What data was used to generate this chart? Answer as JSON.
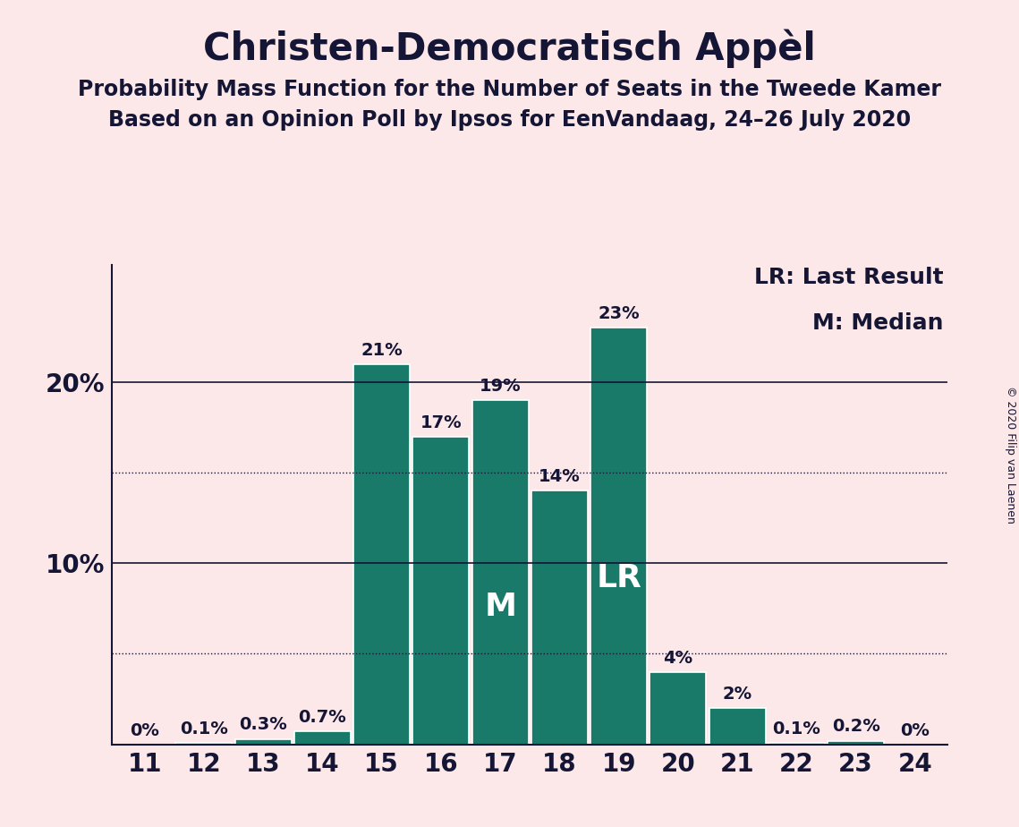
{
  "title": "Christen-Democratisch Appèl",
  "subtitle1": "Probability Mass Function for the Number of Seats in the Tweede Kamer",
  "subtitle2": "Based on an Opinion Poll by Ipsos for EenVandaag, 24–26 July 2020",
  "copyright": "© 2020 Filip van Laenen",
  "legend_lr": "LR: Last Result",
  "legend_m": "M: Median",
  "seats": [
    11,
    12,
    13,
    14,
    15,
    16,
    17,
    18,
    19,
    20,
    21,
    22,
    23,
    24
  ],
  "probabilities": [
    0.0,
    0.001,
    0.003,
    0.007,
    0.21,
    0.17,
    0.19,
    0.14,
    0.23,
    0.04,
    0.02,
    0.001,
    0.002,
    0.0
  ],
  "labels": [
    "0%",
    "0.1%",
    "0.3%",
    "0.7%",
    "21%",
    "17%",
    "19%",
    "14%",
    "23%",
    "4%",
    "2%",
    "0.1%",
    "0.2%",
    "0%"
  ],
  "bar_color": "#1a7a6a",
  "background_color": "#fce8e8",
  "text_color": "#151535",
  "median_seat": 17,
  "lr_seat": 19,
  "dotted_lines": [
    0.05,
    0.15
  ],
  "solid_lines": [
    0.1,
    0.2
  ],
  "ylim": [
    0,
    0.265
  ],
  "title_fontsize": 30,
  "subtitle_fontsize": 17,
  "label_fontsize": 14,
  "axis_fontsize": 20,
  "annotation_fontsize": 26,
  "legend_fontsize": 18,
  "copyright_fontsize": 9
}
